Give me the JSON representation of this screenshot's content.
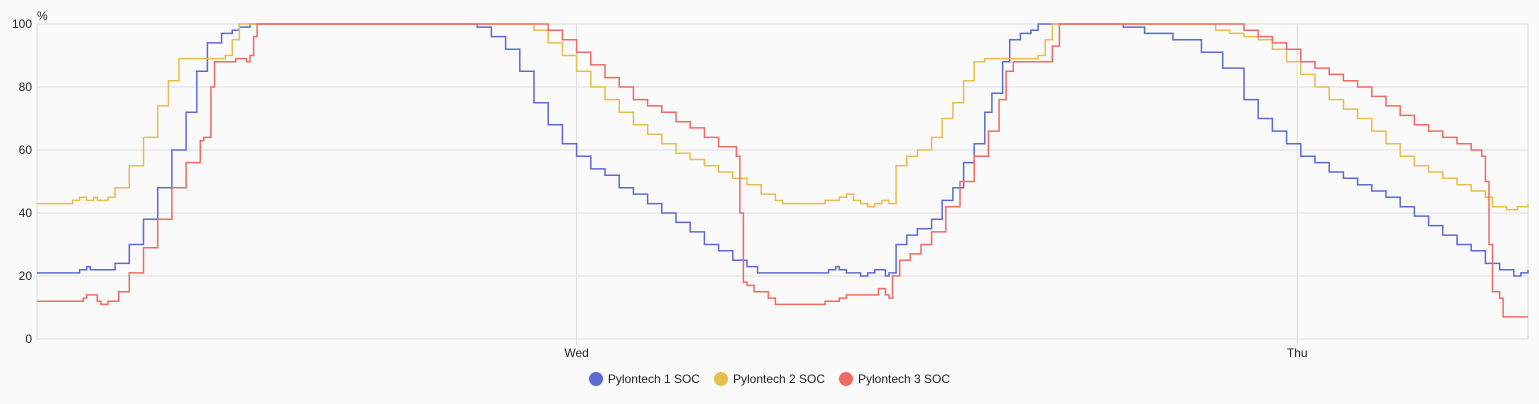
{
  "chart_data": {
    "type": "line",
    "step": true,
    "unit_label": "%",
    "ylim": [
      0,
      100
    ],
    "yticks": [
      0,
      20,
      40,
      60,
      80,
      100
    ],
    "xlim": [
      0,
      2100
    ],
    "xticks": [
      {
        "x": 760,
        "label": "Wed"
      },
      {
        "x": 1775,
        "label": "Thu"
      }
    ],
    "grid": true,
    "legend_position": "bottom-center",
    "series": [
      {
        "name": "Pylontech 1 SOC",
        "color": "#5c6bd4",
        "points": [
          [
            0,
            21
          ],
          [
            50,
            21
          ],
          [
            60,
            22
          ],
          [
            70,
            23
          ],
          [
            75,
            22
          ],
          [
            95,
            22
          ],
          [
            110,
            24
          ],
          [
            130,
            30
          ],
          [
            150,
            38
          ],
          [
            170,
            48
          ],
          [
            190,
            60
          ],
          [
            210,
            72
          ],
          [
            225,
            85
          ],
          [
            240,
            94
          ],
          [
            255,
            94
          ],
          [
            260,
            97
          ],
          [
            275,
            98
          ],
          [
            285,
            99
          ],
          [
            300,
            100
          ],
          [
            610,
            100
          ],
          [
            620,
            99
          ],
          [
            640,
            96
          ],
          [
            660,
            92
          ],
          [
            680,
            85
          ],
          [
            700,
            75
          ],
          [
            720,
            68
          ],
          [
            740,
            62
          ],
          [
            760,
            58
          ],
          [
            780,
            54
          ],
          [
            800,
            52
          ],
          [
            820,
            48
          ],
          [
            840,
            46
          ],
          [
            860,
            43
          ],
          [
            880,
            40
          ],
          [
            900,
            37
          ],
          [
            920,
            34
          ],
          [
            940,
            30
          ],
          [
            960,
            28
          ],
          [
            980,
            25
          ],
          [
            1000,
            23
          ],
          [
            1015,
            21
          ],
          [
            1110,
            21
          ],
          [
            1115,
            22
          ],
          [
            1125,
            23
          ],
          [
            1130,
            22
          ],
          [
            1140,
            21
          ],
          [
            1160,
            20
          ],
          [
            1170,
            21
          ],
          [
            1180,
            22
          ],
          [
            1195,
            20
          ],
          [
            1200,
            21
          ],
          [
            1210,
            30
          ],
          [
            1225,
            33
          ],
          [
            1240,
            35
          ],
          [
            1260,
            38
          ],
          [
            1275,
            44
          ],
          [
            1290,
            48
          ],
          [
            1305,
            56
          ],
          [
            1320,
            62
          ],
          [
            1335,
            72
          ],
          [
            1345,
            78
          ],
          [
            1360,
            88
          ],
          [
            1370,
            95
          ],
          [
            1385,
            97
          ],
          [
            1400,
            98
          ],
          [
            1410,
            100
          ],
          [
            1520,
            100
          ],
          [
            1530,
            99
          ],
          [
            1560,
            97
          ],
          [
            1600,
            95
          ],
          [
            1640,
            91
          ],
          [
            1670,
            86
          ],
          [
            1700,
            76
          ],
          [
            1720,
            70
          ],
          [
            1740,
            66
          ],
          [
            1760,
            62
          ],
          [
            1780,
            58
          ],
          [
            1800,
            56
          ],
          [
            1820,
            53
          ],
          [
            1840,
            51
          ],
          [
            1860,
            49
          ],
          [
            1880,
            47
          ],
          [
            1900,
            45
          ],
          [
            1920,
            42
          ],
          [
            1940,
            39
          ],
          [
            1960,
            36
          ],
          [
            1980,
            33
          ],
          [
            2000,
            30
          ],
          [
            2020,
            28
          ],
          [
            2040,
            24
          ],
          [
            2060,
            22
          ],
          [
            2080,
            20
          ],
          [
            2090,
            21
          ],
          [
            2100,
            22
          ]
        ]
      },
      {
        "name": "Pylontech 2 SOC",
        "color": "#e8bd4c",
        "points": [
          [
            0,
            43
          ],
          [
            40,
            43
          ],
          [
            50,
            44
          ],
          [
            60,
            45
          ],
          [
            70,
            44
          ],
          [
            80,
            45
          ],
          [
            85,
            44
          ],
          [
            100,
            45
          ],
          [
            110,
            48
          ],
          [
            130,
            55
          ],
          [
            150,
            64
          ],
          [
            170,
            74
          ],
          [
            185,
            82
          ],
          [
            200,
            89
          ],
          [
            250,
            89
          ],
          [
            265,
            90
          ],
          [
            275,
            95
          ],
          [
            285,
            100
          ],
          [
            680,
            100
          ],
          [
            700,
            98
          ],
          [
            720,
            94
          ],
          [
            740,
            90
          ],
          [
            760,
            85
          ],
          [
            780,
            80
          ],
          [
            800,
            76
          ],
          [
            820,
            72
          ],
          [
            840,
            68
          ],
          [
            860,
            65
          ],
          [
            880,
            62
          ],
          [
            900,
            59
          ],
          [
            920,
            57
          ],
          [
            940,
            55
          ],
          [
            960,
            53
          ],
          [
            980,
            51
          ],
          [
            1000,
            49
          ],
          [
            1020,
            46
          ],
          [
            1040,
            44
          ],
          [
            1050,
            43
          ],
          [
            1100,
            43
          ],
          [
            1110,
            44
          ],
          [
            1130,
            45
          ],
          [
            1140,
            46
          ],
          [
            1150,
            44
          ],
          [
            1160,
            43
          ],
          [
            1170,
            42
          ],
          [
            1180,
            43
          ],
          [
            1190,
            44
          ],
          [
            1200,
            43
          ],
          [
            1210,
            55
          ],
          [
            1225,
            58
          ],
          [
            1240,
            60
          ],
          [
            1260,
            64
          ],
          [
            1275,
            70
          ],
          [
            1290,
            75
          ],
          [
            1305,
            82
          ],
          [
            1320,
            88
          ],
          [
            1335,
            89
          ],
          [
            1400,
            89
          ],
          [
            1410,
            90
          ],
          [
            1420,
            95
          ],
          [
            1430,
            100
          ],
          [
            1640,
            100
          ],
          [
            1660,
            98
          ],
          [
            1680,
            97
          ],
          [
            1700,
            96
          ],
          [
            1720,
            95
          ],
          [
            1740,
            92
          ],
          [
            1760,
            88
          ],
          [
            1780,
            84
          ],
          [
            1800,
            80
          ],
          [
            1820,
            76
          ],
          [
            1840,
            73
          ],
          [
            1860,
            70
          ],
          [
            1880,
            66
          ],
          [
            1900,
            62
          ],
          [
            1920,
            58
          ],
          [
            1940,
            55
          ],
          [
            1960,
            53
          ],
          [
            1980,
            51
          ],
          [
            2000,
            49
          ],
          [
            2020,
            47
          ],
          [
            2040,
            45
          ],
          [
            2050,
            42
          ],
          [
            2070,
            41
          ],
          [
            2085,
            42
          ],
          [
            2100,
            43
          ]
        ]
      },
      {
        "name": "Pylontech 3 SOC",
        "color": "#ef6a61",
        "points": [
          [
            0,
            12
          ],
          [
            60,
            12
          ],
          [
            65,
            13
          ],
          [
            70,
            14
          ],
          [
            80,
            14
          ],
          [
            85,
            12
          ],
          [
            90,
            11
          ],
          [
            100,
            12
          ],
          [
            115,
            15
          ],
          [
            130,
            21
          ],
          [
            150,
            29
          ],
          [
            170,
            38
          ],
          [
            190,
            48
          ],
          [
            210,
            56
          ],
          [
            230,
            63
          ],
          [
            235,
            64
          ],
          [
            245,
            80
          ],
          [
            250,
            88
          ],
          [
            270,
            88
          ],
          [
            280,
            89
          ],
          [
            295,
            88
          ],
          [
            300,
            90
          ],
          [
            305,
            96
          ],
          [
            310,
            100
          ],
          [
            700,
            100
          ],
          [
            720,
            98
          ],
          [
            740,
            95
          ],
          [
            760,
            91
          ],
          [
            780,
            87
          ],
          [
            800,
            83
          ],
          [
            820,
            80
          ],
          [
            840,
            76
          ],
          [
            860,
            74
          ],
          [
            880,
            72
          ],
          [
            900,
            69
          ],
          [
            920,
            67
          ],
          [
            940,
            64
          ],
          [
            960,
            61
          ],
          [
            985,
            58
          ],
          [
            990,
            40
          ],
          [
            995,
            18
          ],
          [
            1000,
            17
          ],
          [
            1010,
            15
          ],
          [
            1030,
            13
          ],
          [
            1040,
            11
          ],
          [
            1100,
            11
          ],
          [
            1110,
            12
          ],
          [
            1130,
            13
          ],
          [
            1140,
            14
          ],
          [
            1170,
            14
          ],
          [
            1185,
            16
          ],
          [
            1195,
            14
          ],
          [
            1200,
            13
          ],
          [
            1205,
            20
          ],
          [
            1215,
            25
          ],
          [
            1230,
            27
          ],
          [
            1245,
            30
          ],
          [
            1260,
            34
          ],
          [
            1280,
            42
          ],
          [
            1300,
            50
          ],
          [
            1320,
            58
          ],
          [
            1340,
            66
          ],
          [
            1355,
            76
          ],
          [
            1365,
            85
          ],
          [
            1375,
            88
          ],
          [
            1420,
            88
          ],
          [
            1430,
            93
          ],
          [
            1440,
            100
          ],
          [
            1680,
            100
          ],
          [
            1700,
            98
          ],
          [
            1720,
            96
          ],
          [
            1740,
            94
          ],
          [
            1760,
            92
          ],
          [
            1780,
            88
          ],
          [
            1800,
            86
          ],
          [
            1820,
            84
          ],
          [
            1840,
            82
          ],
          [
            1860,
            80
          ],
          [
            1880,
            77
          ],
          [
            1900,
            74
          ],
          [
            1920,
            71
          ],
          [
            1940,
            68
          ],
          [
            1960,
            66
          ],
          [
            1980,
            64
          ],
          [
            2000,
            62
          ],
          [
            2020,
            60
          ],
          [
            2035,
            58
          ],
          [
            2040,
            50
          ],
          [
            2045,
            30
          ],
          [
            2050,
            15
          ],
          [
            2060,
            13
          ],
          [
            2065,
            7
          ],
          [
            2100,
            7
          ]
        ]
      }
    ]
  }
}
